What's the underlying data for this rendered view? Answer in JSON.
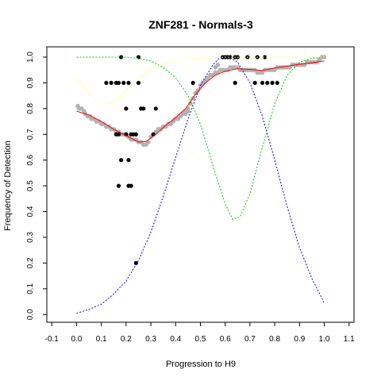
{
  "chart_data": {
    "type": "scatter",
    "title": "ZNF281 - Normals-3",
    "xlabel": "Progression to H9",
    "ylabel": "Frequency of Detection",
    "xlim": [
      -0.12,
      1.12
    ],
    "ylim": [
      -0.03,
      1.04
    ],
    "xticks": [
      -0.1,
      0.0,
      0.1,
      0.2,
      0.3,
      0.4,
      0.5,
      0.6,
      0.7,
      0.8,
      0.9,
      1.0,
      1.1
    ],
    "yticks": [
      0.0,
      0.1,
      0.2,
      0.3,
      0.4,
      0.5,
      0.6,
      0.7,
      0.8,
      0.9,
      1.0
    ],
    "grid": false,
    "colors": {
      "gray_points": "#b3b3b3",
      "black_points": "#000000",
      "fit_line": "#ff0000",
      "blue_curve": "#0000ff",
      "green_curve": "#00cc00",
      "yellow_curve": "#ffff66"
    },
    "series": [
      {
        "kind": "points",
        "color_key": "gray_points",
        "points": [
          [
            0.005,
            0.81
          ],
          [
            0.01,
            0.8
          ],
          [
            0.02,
            0.8
          ],
          [
            0.03,
            0.79
          ],
          [
            0.035,
            0.78
          ],
          [
            0.045,
            0.77
          ],
          [
            0.055,
            0.77
          ],
          [
            0.06,
            0.76
          ],
          [
            0.07,
            0.76
          ],
          [
            0.08,
            0.75
          ],
          [
            0.09,
            0.75
          ],
          [
            0.1,
            0.74
          ],
          [
            0.11,
            0.74
          ],
          [
            0.12,
            0.73
          ],
          [
            0.13,
            0.73
          ],
          [
            0.14,
            0.72
          ],
          [
            0.15,
            0.72
          ],
          [
            0.16,
            0.71
          ],
          [
            0.17,
            0.71
          ],
          [
            0.18,
            0.7
          ],
          [
            0.19,
            0.7
          ],
          [
            0.2,
            0.7
          ],
          [
            0.21,
            0.69
          ],
          [
            0.22,
            0.68
          ],
          [
            0.23,
            0.68
          ],
          [
            0.24,
            0.68
          ],
          [
            0.25,
            0.67
          ],
          [
            0.26,
            0.67
          ],
          [
            0.27,
            0.66
          ],
          [
            0.28,
            0.66
          ],
          [
            0.29,
            0.67
          ],
          [
            0.3,
            0.69
          ],
          [
            0.31,
            0.7
          ],
          [
            0.32,
            0.71
          ],
          [
            0.33,
            0.72
          ],
          [
            0.34,
            0.72
          ],
          [
            0.35,
            0.73
          ],
          [
            0.36,
            0.73
          ],
          [
            0.37,
            0.74
          ],
          [
            0.38,
            0.74
          ],
          [
            0.39,
            0.75
          ],
          [
            0.4,
            0.76
          ],
          [
            0.41,
            0.76
          ],
          [
            0.42,
            0.77
          ],
          [
            0.43,
            0.78
          ],
          [
            0.44,
            0.79
          ],
          [
            0.45,
            0.8
          ],
          [
            0.46,
            0.82
          ],
          [
            0.47,
            0.84
          ],
          [
            0.48,
            0.86
          ],
          [
            0.49,
            0.87
          ],
          [
            0.5,
            0.89
          ],
          [
            0.51,
            0.9
          ],
          [
            0.52,
            0.91
          ],
          [
            0.53,
            0.92
          ],
          [
            0.54,
            0.93
          ],
          [
            0.55,
            0.93
          ],
          [
            0.56,
            0.94
          ],
          [
            0.57,
            0.94
          ],
          [
            0.58,
            0.95
          ],
          [
            0.59,
            0.95
          ],
          [
            0.6,
            0.95
          ],
          [
            0.61,
            0.95
          ],
          [
            0.62,
            0.96
          ],
          [
            0.63,
            0.96
          ],
          [
            0.64,
            0.96
          ],
          [
            0.65,
            0.96
          ],
          [
            0.66,
            0.95
          ],
          [
            0.67,
            0.95
          ],
          [
            0.68,
            0.95
          ],
          [
            0.69,
            0.95
          ],
          [
            0.7,
            0.95
          ],
          [
            0.71,
            0.95
          ],
          [
            0.72,
            0.95
          ],
          [
            0.73,
            0.94
          ],
          [
            0.74,
            0.94
          ],
          [
            0.75,
            0.94
          ],
          [
            0.76,
            0.95
          ],
          [
            0.77,
            0.95
          ],
          [
            0.78,
            0.95
          ],
          [
            0.79,
            0.95
          ],
          [
            0.8,
            0.95
          ],
          [
            0.81,
            0.96
          ],
          [
            0.82,
            0.96
          ],
          [
            0.83,
            0.96
          ],
          [
            0.84,
            0.96
          ],
          [
            0.85,
            0.96
          ],
          [
            0.86,
            0.96
          ],
          [
            0.87,
            0.97
          ],
          [
            0.88,
            0.97
          ],
          [
            0.89,
            0.97
          ],
          [
            0.9,
            0.97
          ],
          [
            0.91,
            0.97
          ],
          [
            0.92,
            0.97
          ],
          [
            0.93,
            0.98
          ],
          [
            0.94,
            0.98
          ],
          [
            0.95,
            0.98
          ],
          [
            0.96,
            0.98
          ],
          [
            0.97,
            0.98
          ],
          [
            0.98,
            0.99
          ],
          [
            0.99,
            1.0
          ],
          [
            1.0,
            1.0
          ],
          [
            0.44,
            0.78
          ],
          [
            0.45,
            0.79
          ],
          [
            0.56,
            0.96
          ],
          [
            0.57,
            0.97
          ]
        ]
      },
      {
        "kind": "points",
        "color_key": "black_points",
        "points": [
          [
            0.12,
            0.9
          ],
          [
            0.14,
            0.9
          ],
          [
            0.16,
            0.9
          ],
          [
            0.17,
            0.9
          ],
          [
            0.19,
            0.9
          ],
          [
            0.21,
            0.9
          ],
          [
            0.25,
            0.9
          ],
          [
            0.18,
            1.0
          ],
          [
            0.25,
            1.0
          ],
          [
            0.2,
            0.8
          ],
          [
            0.26,
            0.8
          ],
          [
            0.27,
            0.8
          ],
          [
            0.32,
            0.8
          ],
          [
            0.16,
            0.7
          ],
          [
            0.17,
            0.7
          ],
          [
            0.2,
            0.7
          ],
          [
            0.22,
            0.7
          ],
          [
            0.23,
            0.7
          ],
          [
            0.24,
            0.7
          ],
          [
            0.18,
            0.6
          ],
          [
            0.21,
            0.6
          ],
          [
            0.17,
            0.5
          ],
          [
            0.21,
            0.5
          ],
          [
            0.22,
            0.5
          ],
          [
            0.24,
            0.2
          ],
          [
            0.31,
            0.7
          ],
          [
            0.47,
            0.9
          ],
          [
            0.59,
            1.0
          ],
          [
            0.6,
            1.0
          ],
          [
            0.61,
            1.0
          ],
          [
            0.62,
            1.0
          ],
          [
            0.64,
            1.0
          ],
          [
            0.65,
            1.0
          ],
          [
            0.69,
            1.0
          ],
          [
            0.73,
            1.0
          ],
          [
            0.76,
            1.0
          ],
          [
            0.64,
            0.9
          ],
          [
            0.72,
            0.9
          ],
          [
            0.75,
            0.9
          ],
          [
            0.77,
            0.9
          ],
          [
            0.79,
            0.9
          ],
          [
            0.81,
            0.9
          ]
        ]
      },
      {
        "kind": "line",
        "color_key": "fit_line",
        "dash": "none",
        "points": [
          [
            0.0,
            0.79
          ],
          [
            0.05,
            0.775
          ],
          [
            0.1,
            0.75
          ],
          [
            0.15,
            0.72
          ],
          [
            0.2,
            0.695
          ],
          [
            0.25,
            0.67
          ],
          [
            0.28,
            0.672
          ],
          [
            0.32,
            0.7
          ],
          [
            0.36,
            0.735
          ],
          [
            0.4,
            0.765
          ],
          [
            0.44,
            0.8
          ],
          [
            0.48,
            0.855
          ],
          [
            0.52,
            0.9
          ],
          [
            0.56,
            0.93
          ],
          [
            0.6,
            0.945
          ],
          [
            0.65,
            0.955
          ],
          [
            0.7,
            0.952
          ],
          [
            0.75,
            0.948
          ],
          [
            0.8,
            0.958
          ],
          [
            0.85,
            0.965
          ],
          [
            0.9,
            0.972
          ],
          [
            0.95,
            0.978
          ],
          [
            1.0,
            0.985
          ]
        ]
      },
      {
        "kind": "line",
        "color_key": "blue_curve",
        "dash": "2,2",
        "points": [
          [
            0.0,
            0.005
          ],
          [
            0.05,
            0.02
          ],
          [
            0.1,
            0.04
          ],
          [
            0.15,
            0.08
          ],
          [
            0.2,
            0.13
          ],
          [
            0.25,
            0.21
          ],
          [
            0.3,
            0.32
          ],
          [
            0.35,
            0.46
          ],
          [
            0.4,
            0.61
          ],
          [
            0.45,
            0.76
          ],
          [
            0.5,
            0.89
          ],
          [
            0.55,
            0.97
          ],
          [
            0.575,
            0.995
          ],
          [
            0.6,
            1.0
          ],
          [
            0.625,
            0.995
          ],
          [
            0.65,
            0.98
          ],
          [
            0.7,
            0.9
          ],
          [
            0.75,
            0.77
          ],
          [
            0.8,
            0.6
          ],
          [
            0.85,
            0.42
          ],
          [
            0.9,
            0.26
          ],
          [
            0.95,
            0.14
          ],
          [
            1.0,
            0.045
          ]
        ]
      },
      {
        "kind": "line",
        "color_key": "green_curve",
        "dash": "2,2",
        "points": [
          [
            0.0,
            1.0
          ],
          [
            0.1,
            1.0
          ],
          [
            0.2,
            1.0
          ],
          [
            0.25,
            0.995
          ],
          [
            0.3,
            0.985
          ],
          [
            0.35,
            0.96
          ],
          [
            0.4,
            0.92
          ],
          [
            0.45,
            0.85
          ],
          [
            0.5,
            0.74
          ],
          [
            0.55,
            0.58
          ],
          [
            0.6,
            0.43
          ],
          [
            0.63,
            0.37
          ],
          [
            0.66,
            0.38
          ],
          [
            0.7,
            0.47
          ],
          [
            0.75,
            0.65
          ],
          [
            0.8,
            0.82
          ],
          [
            0.85,
            0.93
          ],
          [
            0.9,
            0.98
          ],
          [
            0.95,
            0.995
          ],
          [
            1.0,
            1.0
          ]
        ]
      },
      {
        "kind": "line",
        "color_key": "yellow_curve",
        "dash": "2,2",
        "points": [
          [
            0.0,
            0.92
          ],
          [
            0.04,
            0.87
          ],
          [
            0.08,
            0.83
          ],
          [
            0.12,
            0.815
          ],
          [
            0.16,
            0.83
          ],
          [
            0.2,
            0.87
          ],
          [
            0.25,
            0.92
          ],
          [
            0.3,
            0.955
          ],
          [
            0.35,
            0.975
          ],
          [
            0.4,
            0.988
          ],
          [
            0.5,
            0.995
          ],
          [
            0.6,
            1.0
          ],
          [
            0.8,
            1.0
          ],
          [
            1.0,
            1.0
          ]
        ]
      }
    ]
  }
}
